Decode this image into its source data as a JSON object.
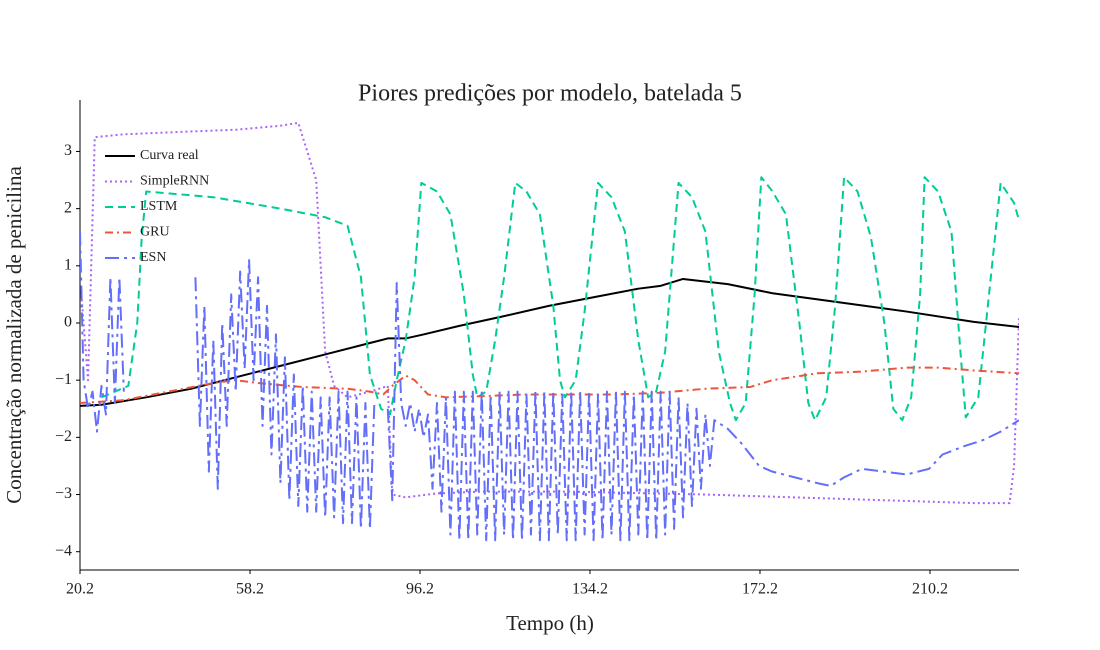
{
  "chart_data": {
    "type": "line",
    "title": "Piores predições por modelo, batelada 5",
    "x_label": "Tempo (h)",
    "y_label": "Concentração normalizada de penicilina",
    "xlim": [
      20.2,
      230.1
    ],
    "ylim": [
      -4.32,
      3.9
    ],
    "xticks": [
      20.2,
      58.2,
      96.2,
      134.2,
      172.2,
      210.2
    ],
    "yticks": [
      {
        "value": -4,
        "label": "−4"
      },
      {
        "value": -3,
        "label": "−3"
      },
      {
        "value": -2,
        "label": "−2"
      },
      {
        "value": -1,
        "label": "−1"
      },
      0,
      1,
      2,
      3
    ],
    "grid": false,
    "legend": "top-left",
    "series": [
      {
        "name": "Curva real",
        "color": "#000000",
        "dash": "solid",
        "x": [
          20.2,
          25,
          35,
          45,
          55,
          65,
          75,
          85,
          89,
          93,
          97,
          105,
          115,
          125,
          135,
          145,
          150,
          155,
          165,
          175,
          190,
          205,
          220,
          230.1
        ],
        "values": [
          -1.45,
          -1.43,
          -1.3,
          -1.15,
          -0.95,
          -0.75,
          -0.55,
          -0.35,
          -0.27,
          -0.27,
          -0.2,
          -0.05,
          0.12,
          0.3,
          0.45,
          0.6,
          0.65,
          0.77,
          0.68,
          0.52,
          0.36,
          0.2,
          0.02,
          -0.07
        ]
      },
      {
        "name": "SimpleRNN",
        "color": "#ab63fa",
        "dash": "dot",
        "x": [
          20.5,
          22,
          23.5,
          30,
          45,
          55,
          65,
          69,
          73,
          75,
          77,
          80,
          85,
          89,
          90,
          93,
          100,
          110,
          130,
          160,
          180,
          200,
          220,
          228,
          229,
          230.1
        ],
        "values": [
          0.5,
          -1.0,
          3.25,
          3.3,
          3.35,
          3.38,
          3.45,
          3.5,
          2.5,
          -0.5,
          -1.1,
          -1.3,
          -1.2,
          -1.1,
          -3.0,
          -3.05,
          -2.98,
          -2.95,
          -2.95,
          -3.0,
          -3.05,
          -3.1,
          -3.15,
          -3.15,
          -2.5,
          0.1
        ]
      },
      {
        "name": "LSTM",
        "color": "#00cc96",
        "dash": "dash",
        "x": [
          25,
          31,
          33,
          34,
          35,
          50,
          65,
          75,
          80,
          83,
          85,
          87.5,
          89.5,
          91,
          93,
          95,
          96.5,
          100,
          103,
          106,
          108,
          109,
          111,
          113,
          115,
          117.5,
          120,
          123,
          126,
          127.5,
          128.6,
          131,
          133,
          136,
          139,
          142,
          145,
          147.2,
          149,
          151,
          154,
          157,
          160,
          163,
          165.5,
          166.8,
          169,
          171,
          172.5,
          175,
          178,
          181,
          183,
          184.5,
          187,
          189,
          191,
          194,
          197,
          200,
          202,
          204,
          206,
          208,
          209,
          212,
          215,
          217,
          218.2,
          221,
          223,
          226,
          229,
          230.1
        ],
        "values": [
          -1.3,
          -1.1,
          0,
          1.5,
          2.3,
          2.2,
          2.0,
          1.85,
          1.7,
          0.8,
          -0.9,
          -1.5,
          -1.6,
          -1.0,
          -0.3,
          0.8,
          2.45,
          2.3,
          1.9,
          0.5,
          -0.9,
          -1.3,
          -1.2,
          -0.3,
          0.8,
          2.45,
          2.3,
          1.9,
          0.3,
          -1.0,
          -1.3,
          -1.0,
          0.2,
          2.45,
          2.2,
          1.6,
          -0.3,
          -1.3,
          -1.2,
          -0.5,
          2.45,
          2.2,
          1.6,
          -0.5,
          -1.4,
          -1.7,
          -1.4,
          0.5,
          2.55,
          2.3,
          1.9,
          0,
          -1.4,
          -1.7,
          -1.3,
          0.3,
          2.55,
          2.3,
          1.5,
          0,
          -1.5,
          -1.7,
          -1.3,
          0.5,
          2.55,
          2.3,
          1.6,
          -0.5,
          -1.65,
          -1.3,
          0.2,
          2.45,
          2.1,
          1.8
        ]
      },
      {
        "name": "GRU",
        "color": "#ef553b",
        "dash": "dashdot",
        "x": [
          20.2,
          30,
          40,
          50,
          55,
          60,
          70,
          80,
          85,
          88,
          90,
          93,
          95,
          98,
          102,
          110,
          120,
          130,
          140,
          150,
          160,
          170,
          175,
          185,
          195,
          205,
          212,
          220,
          230.1
        ],
        "values": [
          -1.4,
          -1.35,
          -1.2,
          -1.05,
          -1.0,
          -1.05,
          -1.12,
          -1.15,
          -1.2,
          -1.25,
          -1.1,
          -0.92,
          -1.0,
          -1.25,
          -1.3,
          -1.28,
          -1.25,
          -1.25,
          -1.25,
          -1.22,
          -1.15,
          -1.12,
          -1.0,
          -0.88,
          -0.85,
          -0.78,
          -0.78,
          -0.83,
          -0.88
        ]
      },
      {
        "name": "ESN",
        "color": "#636efa",
        "dash": "longdashdot",
        "x": [
          20.2,
          21,
          22,
          23,
          24,
          25,
          26,
          27,
          28,
          29,
          30,
          31,
          46,
          47,
          48,
          49,
          50,
          51,
          52,
          53,
          54,
          55,
          56,
          57,
          58,
          59,
          60,
          61,
          62,
          63,
          64,
          65,
          66,
          67,
          68,
          69,
          70,
          71,
          72,
          73,
          74,
          75,
          76,
          77,
          78,
          79,
          80,
          81,
          82,
          83,
          84,
          85,
          86,
          88,
          89,
          90,
          91,
          92,
          93,
          94,
          95,
          96,
          97,
          98,
          99,
          100,
          101,
          102,
          103,
          104,
          105,
          106,
          107,
          108,
          109,
          110,
          111,
          112,
          113,
          114,
          115,
          116,
          117,
          118,
          119,
          120,
          121,
          122,
          123,
          124,
          125,
          126,
          127,
          128,
          129,
          130,
          131,
          132,
          133,
          134,
          135,
          136,
          137,
          138,
          139,
          140,
          141,
          142,
          143,
          144,
          145,
          146,
          147,
          148,
          149,
          150,
          151,
          152,
          153,
          154,
          155,
          156,
          157,
          158,
          159,
          160,
          161,
          162,
          165,
          168,
          170,
          172,
          175,
          180,
          185,
          188,
          191,
          195,
          200,
          205,
          210,
          213,
          218,
          222,
          226,
          230.1
        ],
        "values": [
          1.6,
          -1.0,
          -1.5,
          -1.2,
          -1.9,
          -1.1,
          -1.6,
          0.8,
          -1.4,
          0.8,
          -1.2,
          null,
          0.8,
          -1.8,
          0.3,
          -2.6,
          -0.3,
          -2.9,
          0.0,
          -1.8,
          0.5,
          -1.2,
          0.9,
          -0.8,
          1.1,
          -1.0,
          0.8,
          -1.8,
          0.3,
          -2.3,
          -0.2,
          -2.8,
          -0.6,
          -3.1,
          -0.9,
          -3.2,
          -1.1,
          -3.3,
          -1.2,
          -3.3,
          -1.3,
          -3.4,
          -1.3,
          -3.4,
          -1.2,
          -3.5,
          -1.2,
          -3.5,
          -1.3,
          -3.6,
          -1.4,
          -3.6,
          -1.4,
          null,
          -1.5,
          -3.1,
          0.7,
          -1.4,
          -1.8,
          -1.4,
          -1.9,
          -1.5,
          -2.0,
          -1.6,
          -2.9,
          -1.4,
          -3.3,
          -1.3,
          -3.7,
          -1.2,
          -3.8,
          -1.2,
          -3.8,
          -1.2,
          -3.7,
          -1.2,
          -3.8,
          -1.25,
          -3.8,
          -1.2,
          -3.7,
          -1.2,
          -3.8,
          -1.2,
          -3.8,
          -1.25,
          -3.7,
          -1.2,
          -3.8,
          -1.2,
          -3.8,
          -1.2,
          -3.7,
          -1.25,
          -3.8,
          -1.2,
          -3.8,
          -1.2,
          -3.7,
          -1.2,
          -3.8,
          -1.25,
          -3.8,
          -1.2,
          -3.7,
          -1.2,
          -3.8,
          -1.2,
          -3.8,
          -1.25,
          -3.7,
          -1.2,
          -3.8,
          -1.2,
          -3.8,
          -1.2,
          -3.7,
          -1.2,
          -3.6,
          -1.3,
          -3.4,
          -1.4,
          -3.2,
          -1.5,
          -2.9,
          -1.6,
          -2.5,
          -1.7,
          -1.85,
          -2.1,
          -2.3,
          -2.5,
          -2.6,
          -2.7,
          -2.8,
          -2.85,
          -2.7,
          -2.55,
          -2.6,
          -2.65,
          -2.55,
          -2.3,
          -2.15,
          -2.05,
          -1.9,
          -1.7
        ]
      }
    ]
  }
}
